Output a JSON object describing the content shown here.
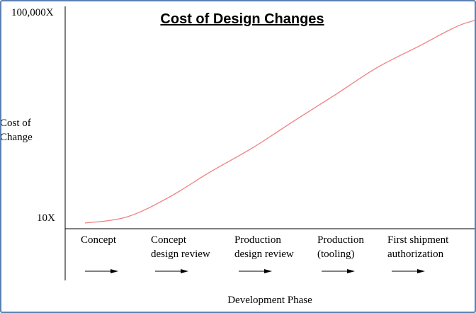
{
  "chart_data": {
    "type": "line",
    "title": "Cost of Design Changes",
    "xlabel": "Development Phase",
    "ylabel": [
      "Cost of",
      "Change"
    ],
    "y_ticks": [
      "10X",
      "100,000X"
    ],
    "categories": [
      [
        "Concept"
      ],
      [
        "Concept",
        "design review"
      ],
      [
        "Production",
        "design review"
      ],
      [
        "Production",
        "(tooling)"
      ],
      [
        "First shipment",
        "authorization"
      ]
    ],
    "series": [
      {
        "color": "#f08080",
        "x": [
          0.0,
          0.5,
          1.0,
          1.5,
          2.0,
          2.5,
          3.0,
          3.5,
          4.0,
          4.5,
          4.95
        ],
        "values": [
          10,
          13,
          30,
          90,
          250,
          800,
          2500,
          8000,
          20000,
          50000,
          75000
        ]
      }
    ],
    "grid": false,
    "axis_color": "#000000"
  }
}
